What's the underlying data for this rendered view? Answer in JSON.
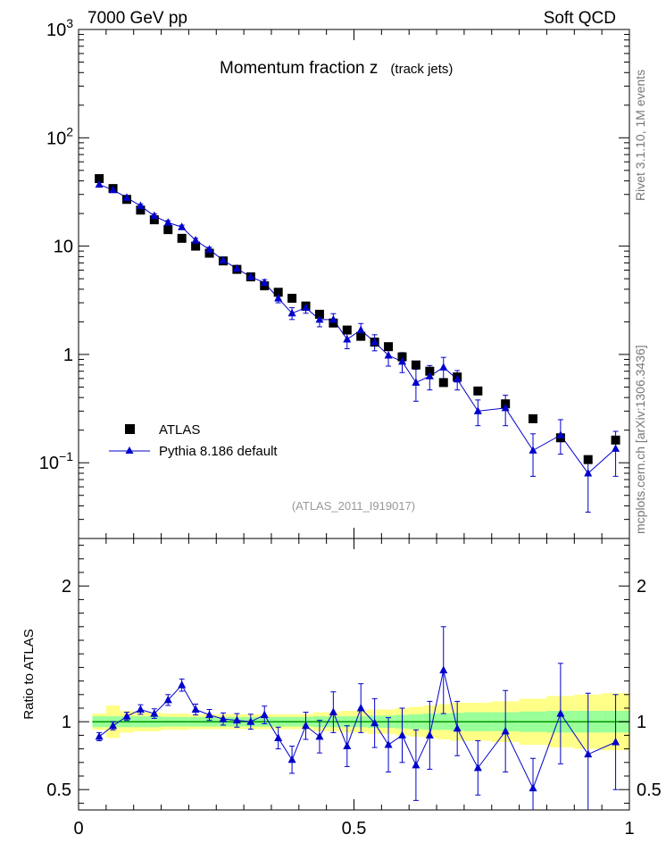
{
  "header": {
    "left": "7000 GeV pp",
    "right": "Soft QCD"
  },
  "side_texts": {
    "rivet": "Rivet 3.1.10,  1M events",
    "site": "mcplots.cern.ch [arXiv:1306.3436]"
  },
  "chart_data": {
    "type": "scatter",
    "title": "Momentum fraction z",
    "subtitle": "(track jets)",
    "watermark": "(ATLAS_2011_I919017)",
    "xlim": [
      0,
      1
    ],
    "ylim_main": [
      0.02,
      1000
    ],
    "yscale_main": "log",
    "ylabel_ratio": "Ratio to ATLAS",
    "ylim_ratio": [
      0.35,
      2.35
    ],
    "x_ticks": [
      {
        "v": 0,
        "label": "0"
      },
      {
        "v": 0.5,
        "label": "0.5"
      },
      {
        "v": 1,
        "label": "1"
      }
    ],
    "y_ticks_main": [
      {
        "v": 1000,
        "base": "10",
        "exp": "3"
      },
      {
        "v": 100,
        "base": "10",
        "exp": "2"
      },
      {
        "v": 10,
        "base": "10",
        "exp": ""
      },
      {
        "v": 1,
        "base": "1",
        "exp": ""
      },
      {
        "v": 0.1,
        "base": "10",
        "exp": "−1"
      }
    ],
    "y_ticks_ratio": [
      {
        "v": 2,
        "label": "2"
      },
      {
        "v": 1,
        "label": "1"
      },
      {
        "v": 0.5,
        "label": "0.5"
      }
    ],
    "legend": [
      {
        "name": "ATLAS",
        "marker": "square",
        "color": "#000000"
      },
      {
        "name": "Pythia 8.186 default",
        "marker": "triangle",
        "color": "#0000cc"
      }
    ],
    "bands": {
      "inner_color": "#99ff99",
      "outer_color": "#ffff88"
    },
    "data_points": [
      {
        "x": 0.0375,
        "y": 42
      },
      {
        "x": 0.0625,
        "y": 34
      },
      {
        "x": 0.0875,
        "y": 27
      },
      {
        "x": 0.1125,
        "y": 21.5
      },
      {
        "x": 0.1375,
        "y": 17.5
      },
      {
        "x": 0.1625,
        "y": 14.2
      },
      {
        "x": 0.1875,
        "y": 11.8
      },
      {
        "x": 0.2125,
        "y": 10
      },
      {
        "x": 0.2375,
        "y": 8.6
      },
      {
        "x": 0.2625,
        "y": 7.3
      },
      {
        "x": 0.2875,
        "y": 6.1
      },
      {
        "x": 0.3125,
        "y": 5.2
      },
      {
        "x": 0.3375,
        "y": 4.3
      },
      {
        "x": 0.3625,
        "y": 3.75
      },
      {
        "x": 0.3875,
        "y": 3.3
      },
      {
        "x": 0.4125,
        "y": 2.8
      },
      {
        "x": 0.4375,
        "y": 2.35
      },
      {
        "x": 0.4625,
        "y": 1.95
      },
      {
        "x": 0.4875,
        "y": 1.68
      },
      {
        "x": 0.5125,
        "y": 1.47
      },
      {
        "x": 0.5375,
        "y": 1.3
      },
      {
        "x": 0.5625,
        "y": 1.18
      },
      {
        "x": 0.5875,
        "y": 0.95
      },
      {
        "x": 0.6125,
        "y": 0.8
      },
      {
        "x": 0.6375,
        "y": 0.7
      },
      {
        "x": 0.6625,
        "y": 0.55
      },
      {
        "x": 0.6875,
        "y": 0.62
      },
      {
        "x": 0.725,
        "y": 0.46
      },
      {
        "x": 0.775,
        "y": 0.35
      },
      {
        "x": 0.825,
        "y": 0.255
      },
      {
        "x": 0.875,
        "y": 0.17
      },
      {
        "x": 0.925,
        "y": 0.107
      },
      {
        "x": 0.975,
        "y": 0.162
      }
    ],
    "mc_points": [
      {
        "x": 0.0375,
        "y": 37,
        "elo": 1.5,
        "ehi": 1.5
      },
      {
        "x": 0.0625,
        "y": 33,
        "elo": 1.2,
        "ehi": 1.2
      },
      {
        "x": 0.0875,
        "y": 28,
        "elo": 1.0,
        "ehi": 1.0
      },
      {
        "x": 0.1125,
        "y": 23.5,
        "elo": 0.9,
        "ehi": 0.9
      },
      {
        "x": 0.1375,
        "y": 19,
        "elo": 0.8,
        "ehi": 0.8
      },
      {
        "x": 0.1625,
        "y": 16.5,
        "elo": 0.7,
        "ehi": 0.7
      },
      {
        "x": 0.1875,
        "y": 15,
        "elo": 0.6,
        "ehi": 0.6
      },
      {
        "x": 0.2125,
        "y": 11.3,
        "elo": 0.5,
        "ehi": 0.5
      },
      {
        "x": 0.2375,
        "y": 9.3,
        "elo": 0.45,
        "ehi": 0.45
      },
      {
        "x": 0.2625,
        "y": 7.4,
        "elo": 0.4,
        "ehi": 0.4
      },
      {
        "x": 0.2875,
        "y": 6.2,
        "elo": 0.35,
        "ehi": 0.35
      },
      {
        "x": 0.3125,
        "y": 5.2,
        "elo": 0.3,
        "ehi": 0.3
      },
      {
        "x": 0.3375,
        "y": 4.6,
        "elo": 0.3,
        "ehi": 0.3
      },
      {
        "x": 0.3625,
        "y": 3.3,
        "elo": 0.3,
        "ehi": 0.3
      },
      {
        "x": 0.3875,
        "y": 2.4,
        "elo": 0.3,
        "ehi": 0.3
      },
      {
        "x": 0.4125,
        "y": 2.7,
        "elo": 0.3,
        "ehi": 0.3
      },
      {
        "x": 0.4375,
        "y": 2.1,
        "elo": 0.3,
        "ehi": 0.3
      },
      {
        "x": 0.4625,
        "y": 2.1,
        "elo": 0.28,
        "ehi": 0.28
      },
      {
        "x": 0.4875,
        "y": 1.38,
        "elo": 0.25,
        "ehi": 0.25
      },
      {
        "x": 0.5125,
        "y": 1.68,
        "elo": 0.25,
        "ehi": 0.25
      },
      {
        "x": 0.5375,
        "y": 1.3,
        "elo": 0.22,
        "ehi": 0.22
      },
      {
        "x": 0.5625,
        "y": 0.98,
        "elo": 0.2,
        "ehi": 0.2
      },
      {
        "x": 0.5875,
        "y": 0.86,
        "elo": 0.18,
        "ehi": 0.18
      },
      {
        "x": 0.6125,
        "y": 0.55,
        "elo": 0.18,
        "ehi": 0.18
      },
      {
        "x": 0.6375,
        "y": 0.63,
        "elo": 0.16,
        "ehi": 0.16
      },
      {
        "x": 0.6625,
        "y": 0.76,
        "elo": 0.18,
        "ehi": 0.18
      },
      {
        "x": 0.6875,
        "y": 0.59,
        "elo": 0.12,
        "ehi": 0.12
      },
      {
        "x": 0.725,
        "y": 0.3,
        "elo": 0.08,
        "ehi": 0.08
      },
      {
        "x": 0.775,
        "y": 0.32,
        "elo": 0.1,
        "ehi": 0.1
      },
      {
        "x": 0.825,
        "y": 0.13,
        "elo": 0.055,
        "ehi": 0.055
      },
      {
        "x": 0.875,
        "y": 0.18,
        "elo": 0.06,
        "ehi": 0.07
      },
      {
        "x": 0.925,
        "y": 0.08,
        "elo": 0.045,
        "ehi": 0.035
      },
      {
        "x": 0.975,
        "y": 0.135,
        "elo": 0.06,
        "ehi": 0.06
      }
    ],
    "ratio_points": [
      {
        "x": 0.0375,
        "y": 0.89,
        "elo": 0.03,
        "ehi": 0.03
      },
      {
        "x": 0.0625,
        "y": 0.97,
        "elo": 0.03,
        "ehi": 0.03
      },
      {
        "x": 0.0875,
        "y": 1.04,
        "elo": 0.03,
        "ehi": 0.03
      },
      {
        "x": 0.1125,
        "y": 1.09,
        "elo": 0.035,
        "ehi": 0.035
      },
      {
        "x": 0.1375,
        "y": 1.06,
        "elo": 0.035,
        "ehi": 0.035
      },
      {
        "x": 0.1625,
        "y": 1.16,
        "elo": 0.04,
        "ehi": 0.04
      },
      {
        "x": 0.1875,
        "y": 1.27,
        "elo": 0.045,
        "ehi": 0.045
      },
      {
        "x": 0.2125,
        "y": 1.09,
        "elo": 0.04,
        "ehi": 0.04
      },
      {
        "x": 0.2375,
        "y": 1.05,
        "elo": 0.04,
        "ehi": 0.04
      },
      {
        "x": 0.2625,
        "y": 1.02,
        "elo": 0.045,
        "ehi": 0.045
      },
      {
        "x": 0.2875,
        "y": 1.01,
        "elo": 0.05,
        "ehi": 0.05
      },
      {
        "x": 0.3125,
        "y": 1.0,
        "elo": 0.055,
        "ehi": 0.055
      },
      {
        "x": 0.3375,
        "y": 1.05,
        "elo": 0.065,
        "ehi": 0.065
      },
      {
        "x": 0.3625,
        "y": 0.88,
        "elo": 0.08,
        "ehi": 0.08
      },
      {
        "x": 0.3875,
        "y": 0.72,
        "elo": 0.1,
        "ehi": 0.1
      },
      {
        "x": 0.4125,
        "y": 0.97,
        "elo": 0.1,
        "ehi": 0.1
      },
      {
        "x": 0.4375,
        "y": 0.89,
        "elo": 0.12,
        "ehi": 0.12
      },
      {
        "x": 0.4625,
        "y": 1.07,
        "elo": 0.15,
        "ehi": 0.15
      },
      {
        "x": 0.4875,
        "y": 0.82,
        "elo": 0.15,
        "ehi": 0.15
      },
      {
        "x": 0.5125,
        "y": 1.1,
        "elo": 0.18,
        "ehi": 0.18
      },
      {
        "x": 0.5375,
        "y": 0.99,
        "elo": 0.18,
        "ehi": 0.18
      },
      {
        "x": 0.5625,
        "y": 0.83,
        "elo": 0.2,
        "ehi": 0.2
      },
      {
        "x": 0.5875,
        "y": 0.9,
        "elo": 0.2,
        "ehi": 0.2
      },
      {
        "x": 0.6125,
        "y": 0.68,
        "elo": 0.26,
        "ehi": 0.26
      },
      {
        "x": 0.6375,
        "y": 0.9,
        "elo": 0.25,
        "ehi": 0.25
      },
      {
        "x": 0.6625,
        "y": 1.38,
        "elo": 0.32,
        "ehi": 0.32
      },
      {
        "x": 0.6875,
        "y": 0.95,
        "elo": 0.2,
        "ehi": 0.2
      },
      {
        "x": 0.725,
        "y": 0.66,
        "elo": 0.2,
        "ehi": 0.2
      },
      {
        "x": 0.775,
        "y": 0.93,
        "elo": 0.3,
        "ehi": 0.3
      },
      {
        "x": 0.825,
        "y": 0.51,
        "elo": 0.22,
        "ehi": 0.22
      },
      {
        "x": 0.875,
        "y": 1.06,
        "elo": 0.37,
        "ehi": 0.37
      },
      {
        "x": 0.925,
        "y": 0.76,
        "elo": 0.45,
        "ehi": 0.45
      },
      {
        "x": 0.975,
        "y": 0.85,
        "elo": 0.35,
        "ehi": 0.35
      }
    ],
    "band_edges": [
      0.025,
      0.05,
      0.075,
      0.1,
      0.125,
      0.15,
      0.175,
      0.2,
      0.225,
      0.25,
      0.275,
      0.3,
      0.325,
      0.35,
      0.375,
      0.4,
      0.425,
      0.45,
      0.475,
      0.5,
      0.525,
      0.55,
      0.575,
      0.6,
      0.625,
      0.65,
      0.675,
      0.7,
      0.75,
      0.8,
      0.85,
      0.9,
      0.95,
      1.0
    ],
    "band_inner": [
      0.04,
      0.04,
      0.04,
      0.04,
      0.04,
      0.035,
      0.035,
      0.035,
      0.035,
      0.035,
      0.035,
      0.035,
      0.035,
      0.035,
      0.035,
      0.035,
      0.04,
      0.04,
      0.04,
      0.04,
      0.045,
      0.045,
      0.05,
      0.055,
      0.06,
      0.06,
      0.065,
      0.07,
      0.07,
      0.075,
      0.08,
      0.08,
      0.08
    ],
    "band_outer": [
      0.06,
      0.12,
      0.08,
      0.07,
      0.07,
      0.06,
      0.06,
      0.055,
      0.055,
      0.055,
      0.055,
      0.055,
      0.055,
      0.055,
      0.055,
      0.055,
      0.07,
      0.07,
      0.08,
      0.08,
      0.09,
      0.09,
      0.1,
      0.11,
      0.12,
      0.13,
      0.14,
      0.14,
      0.15,
      0.17,
      0.19,
      0.2,
      0.21
    ]
  }
}
